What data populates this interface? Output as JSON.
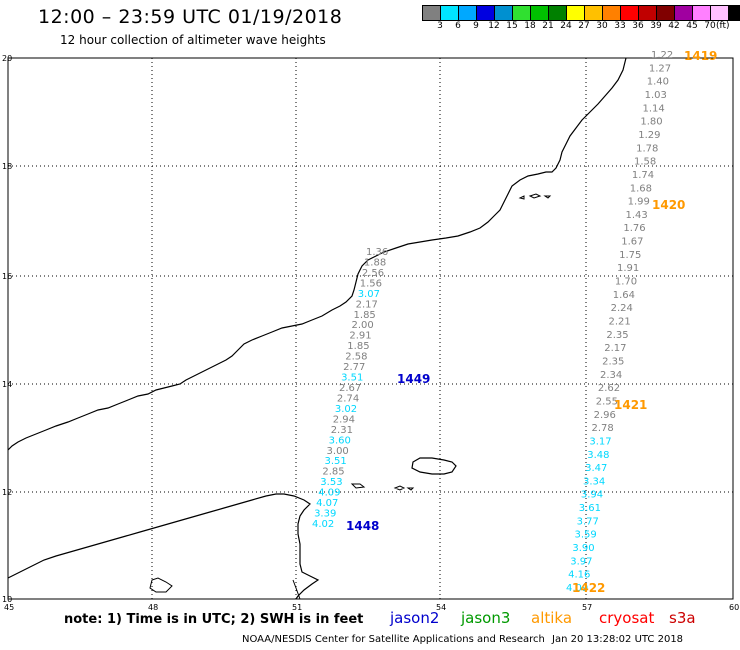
{
  "header": {
    "title": "12:00 – 23:59 UTC 01/19/2018",
    "subtitle": "12 hour collection of altimeter wave heights"
  },
  "legend": {
    "colors": [
      "#808080",
      "#00e5ff",
      "#00a8ff",
      "#0000e0",
      "#0090d0",
      "#30e030",
      "#00c000",
      "#008000",
      "#ffff00",
      "#ffc000",
      "#ff8000",
      "#ff0000",
      "#c00000",
      "#800000",
      "#a000a0",
      "#ff80ff",
      "#ffc0ff",
      "#000000"
    ],
    "labels": [
      "3",
      "6",
      "9",
      "12",
      "15",
      "18",
      "21",
      "24",
      "27",
      "30",
      "33",
      "36",
      "39",
      "42",
      "45",
      "70"
    ],
    "unit": "(ft)"
  },
  "axes": {
    "lon_ticks": [
      "45",
      "48",
      "51",
      "54",
      "57",
      "60"
    ],
    "lat_ticks": [
      "20",
      "18",
      "16",
      "14",
      "12",
      "10"
    ]
  },
  "passes": [
    {
      "label": "1419",
      "color": "#ff9900"
    },
    {
      "label": "1420",
      "color": "#ff9900"
    },
    {
      "label": "1421",
      "color": "#ff9900"
    },
    {
      "label": "1422",
      "color": "#ff9900"
    },
    {
      "label": "1449",
      "color": "#0000cc"
    },
    {
      "label": "1448",
      "color": "#0000cc"
    }
  ],
  "track_a": {
    "values": [
      "1.36",
      "1.88",
      "2.56",
      "1.56",
      "3.07",
      "2.17",
      "1.85",
      "2.00",
      "2.91",
      "1.85",
      "2.58",
      "2.77",
      "3.51",
      "2.67",
      "2.74",
      "3.02",
      "2.94",
      "2.31",
      "3.60",
      "3.00",
      "3.51",
      "2.85",
      "3.53",
      "4.09",
      "4.07",
      "3.39",
      "4.02"
    ],
    "colors": [
      "g",
      "g",
      "g",
      "g",
      "c",
      "g",
      "g",
      "g",
      "g",
      "g",
      "g",
      "g",
      "c",
      "g",
      "g",
      "c",
      "g",
      "g",
      "c",
      "g",
      "c",
      "g",
      "c",
      "c",
      "c",
      "c",
      "c"
    ]
  },
  "track_b": {
    "values": [
      "1.22",
      "1.27",
      "1.40",
      "1.03",
      "1.14",
      "1.80",
      "1.29",
      "1.78",
      "1.58",
      "1.74",
      "1.68",
      "1.99",
      "1.43",
      "1.76",
      "1.67",
      "1.75",
      "1.91",
      "1.70",
      "1.64",
      "2.24",
      "2.21",
      "2.35",
      "2.17",
      "2.35",
      "2.34",
      "2.62",
      "2.55",
      "2.96",
      "2.78",
      "3.17",
      "3.48",
      "3.47",
      "3.34",
      "3.94",
      "3.61",
      "3.77",
      "3.59",
      "3.90",
      "3.97",
      "4.16",
      "4.09"
    ],
    "colors": [
      "g",
      "g",
      "g",
      "g",
      "g",
      "g",
      "g",
      "g",
      "g",
      "g",
      "g",
      "g",
      "g",
      "g",
      "g",
      "g",
      "g",
      "g",
      "g",
      "g",
      "g",
      "g",
      "g",
      "g",
      "g",
      "g",
      "g",
      "g",
      "g",
      "c",
      "c",
      "c",
      "c",
      "c",
      "c",
      "c",
      "c",
      "c",
      "c",
      "c",
      "c"
    ]
  },
  "note": "note: 1) Time is in UTC; 2) SWH is in feet",
  "satellites": [
    {
      "name": "jason2",
      "color": "#0000cc"
    },
    {
      "name": "jason3",
      "color": "#009900"
    },
    {
      "name": "altika",
      "color": "#ff9900"
    },
    {
      "name": "cryosat",
      "color": "#ff0000"
    },
    {
      "name": "s3a",
      "color": "#cc0000"
    }
  ],
  "footer": {
    "org": "NOAA/NESDIS Center for Satellite Applications and Research",
    "time": "Jan 20 13:28:02 UTC 2018"
  }
}
